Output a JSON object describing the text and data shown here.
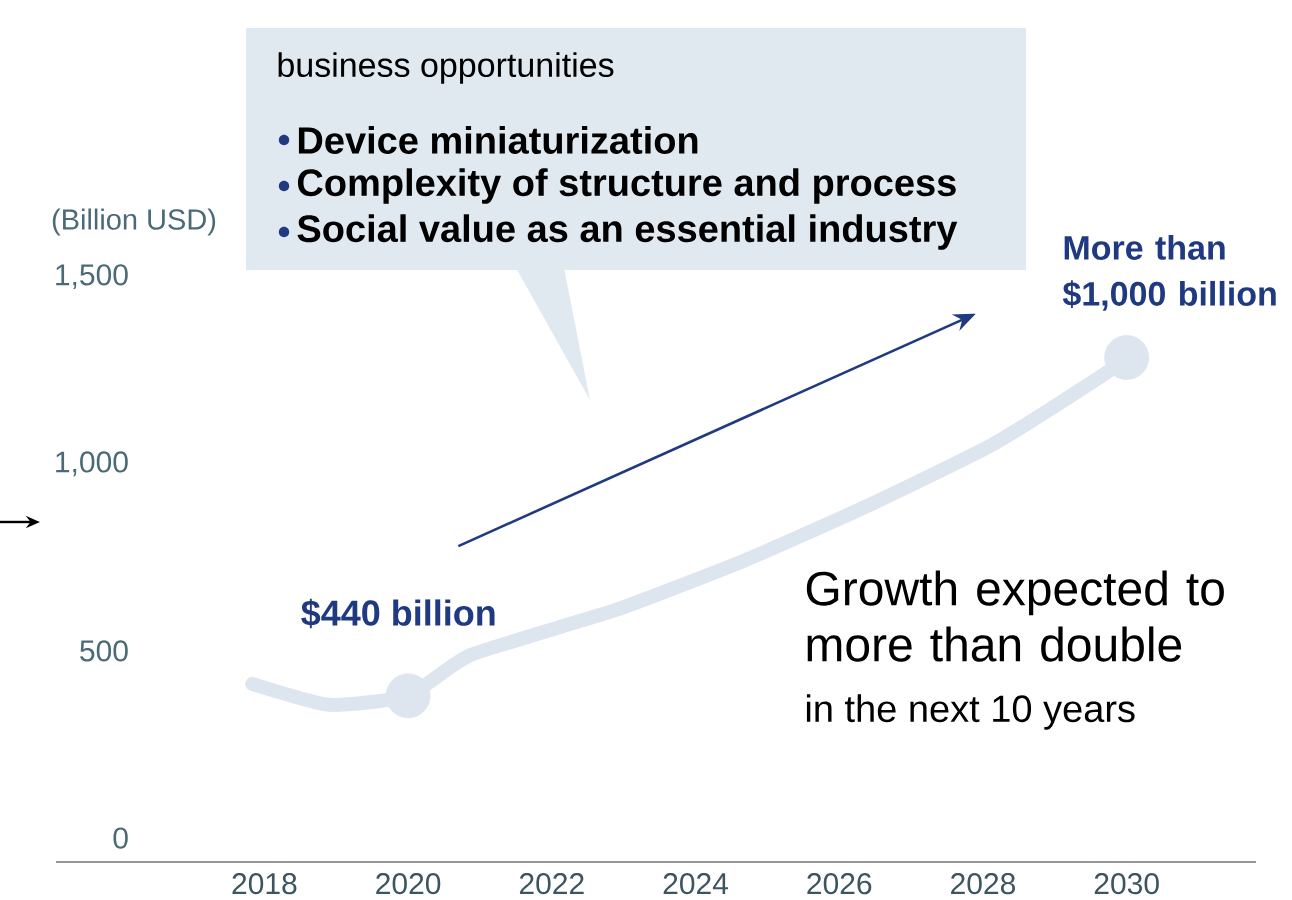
{
  "chart_data": {
    "type": "line",
    "ylabel": "(Billion USD)",
    "xlim": [
      2015.1,
      2031.8
    ],
    "xticks": [
      2018,
      2020,
      2022,
      2024,
      2026,
      2028,
      2030
    ],
    "ylim": [
      -64,
      1500
    ],
    "yticks": [
      0,
      500,
      {
        "value": 1000,
        "label": "1,000"
      },
      {
        "value": 1500,
        "label": "1,500"
      }
    ],
    "grid": false,
    "series": [
      {
        "color": "#dde6ee",
        "x": [
          2017.83,
          2018.9,
          2020,
          2020.87,
          2022.9,
          2024.7,
          2026.4,
          2028.15,
          2029.7,
          2030
        ],
        "values": [
          412,
          356,
          380,
          489,
          610,
          743,
          888,
          1053,
          1241,
          1284
        ]
      },
      {
        "type": "scatter",
        "marker": "circle",
        "color": "#dde6ee",
        "x": [
          2020,
          2030
        ],
        "values": [
          380,
          1284
        ]
      }
    ],
    "annotations": [
      "business opportunities",
      "Device miniaturization",
      "Complexity of structure and process",
      "Social value as an essential industry",
      {
        "text": "$440 billion",
        "x": 2020,
        "y": 380
      },
      {
        "text": "More than $1,000 billion",
        "x": 2030,
        "y": 1284
      },
      "Growth expected to more than double",
      "in the next 10 years"
    ]
  }
}
